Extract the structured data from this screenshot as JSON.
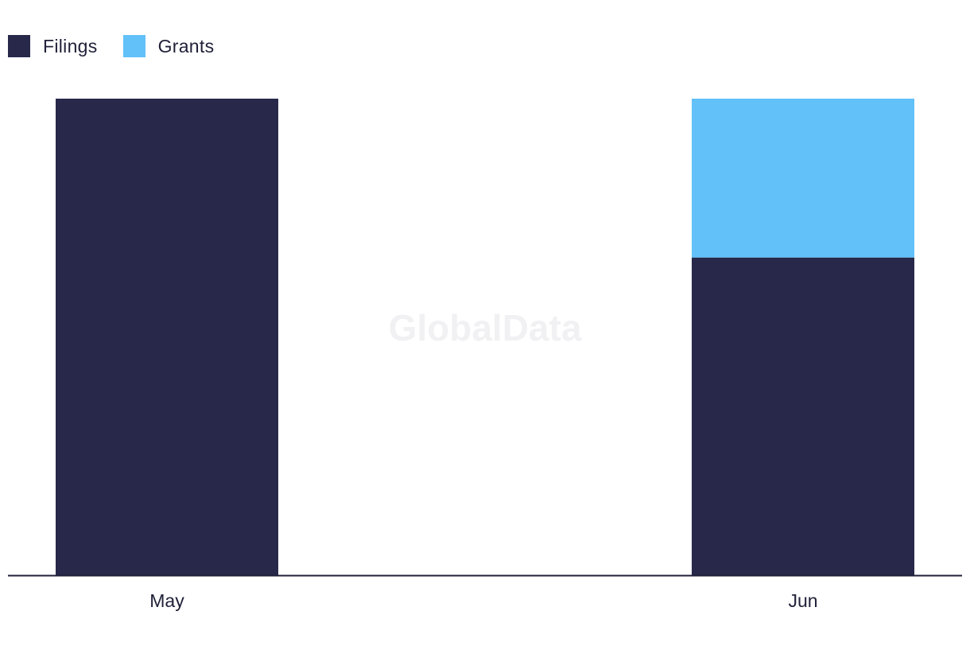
{
  "watermark": "GlobalData",
  "chart_data": {
    "type": "bar",
    "stacked": true,
    "categories": [
      "May",
      "Jun"
    ],
    "series": [
      {
        "name": "Filings",
        "values": [
          3,
          2
        ],
        "color": "#27284a"
      },
      {
        "name": "Grants",
        "values": [
          0,
          1
        ],
        "color": "#62c1f8"
      }
    ],
    "title": "",
    "xlabel": "",
    "ylabel": "",
    "ylim": [
      0,
      3
    ],
    "grid": false,
    "legend_position": "top-left"
  }
}
